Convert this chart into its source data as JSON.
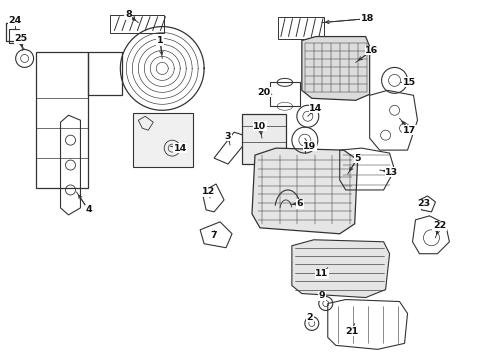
{
  "bg_color": "#ffffff",
  "line_color": "#333333",
  "text_color": "#111111",
  "fig_width": 4.89,
  "fig_height": 3.6,
  "dpi": 100
}
